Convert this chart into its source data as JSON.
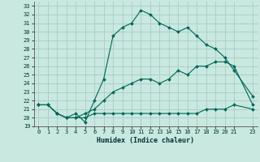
{
  "xlabel": "Humidex (Indice chaleur)",
  "background_color": "#c8e8e0",
  "grid_color": "#a8ccc4",
  "line_color": "#006655",
  "xlim": [
    -0.5,
    23.5
  ],
  "ylim": [
    19,
    33.5
  ],
  "yticks": [
    19,
    20,
    21,
    22,
    23,
    24,
    25,
    26,
    27,
    28,
    29,
    30,
    31,
    32,
    33
  ],
  "xticks": [
    0,
    1,
    2,
    3,
    4,
    5,
    6,
    7,
    8,
    9,
    10,
    11,
    12,
    13,
    14,
    15,
    16,
    17,
    18,
    19,
    20,
    21,
    23
  ],
  "line1_x": [
    0,
    1,
    2,
    3,
    4,
    5,
    6,
    7,
    8,
    9,
    10,
    11,
    12,
    13,
    14,
    15,
    16,
    17,
    18,
    19,
    20,
    21,
    23
  ],
  "line1_y": [
    21.5,
    21.5,
    20.5,
    20.0,
    20.5,
    19.5,
    22.0,
    24.5,
    29.5,
    30.5,
    31.0,
    32.5,
    32.0,
    31.0,
    30.5,
    30.0,
    30.5,
    29.5,
    28.5,
    28.0,
    27.0,
    25.5,
    22.5
  ],
  "line2_x": [
    0,
    1,
    2,
    3,
    4,
    5,
    6,
    7,
    8,
    9,
    10,
    11,
    12,
    13,
    14,
    15,
    16,
    17,
    18,
    19,
    20,
    21,
    23
  ],
  "line2_y": [
    21.5,
    21.5,
    20.5,
    20.0,
    20.0,
    20.5,
    21.0,
    22.0,
    23.0,
    23.5,
    24.0,
    24.5,
    24.5,
    24.0,
    24.5,
    25.5,
    25.0,
    26.0,
    26.0,
    26.5,
    26.5,
    26.0,
    21.5
  ],
  "line3_x": [
    0,
    1,
    2,
    3,
    4,
    5,
    6,
    7,
    8,
    9,
    10,
    11,
    12,
    13,
    14,
    15,
    16,
    17,
    18,
    19,
    20,
    21,
    23
  ],
  "line3_y": [
    21.5,
    21.5,
    20.5,
    20.0,
    20.0,
    20.0,
    20.5,
    20.5,
    20.5,
    20.5,
    20.5,
    20.5,
    20.5,
    20.5,
    20.5,
    20.5,
    20.5,
    20.5,
    21.0,
    21.0,
    21.0,
    21.5,
    21.0
  ]
}
